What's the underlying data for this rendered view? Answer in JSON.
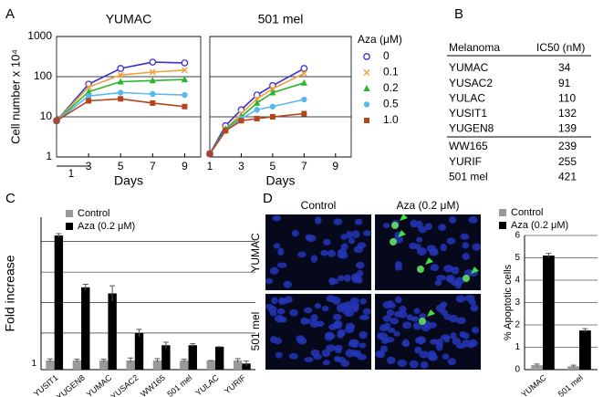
{
  "chart_data": [
    {
      "type": "line",
      "title": "YUMAC",
      "xlabel": "Days",
      "ylabel": "Cell number x 10⁴",
      "log_y": true,
      "grid": true,
      "x": [
        1,
        3,
        5,
        7,
        9
      ],
      "xlim": [
        1,
        10
      ],
      "xticks": [
        3,
        5,
        7,
        9
      ],
      "ylim": [
        1,
        1000
      ],
      "yticks": [
        1,
        10,
        100,
        1000
      ],
      "annotation": "1",
      "legend_title": "Aza (μM)",
      "series": [
        {
          "name": "0",
          "color": "#3a2fd0",
          "marker": "open-circle",
          "values": [
            8,
            65,
            160,
            230,
            220
          ]
        },
        {
          "name": "0.1",
          "color": "#f0a040",
          "marker": "cross",
          "values": [
            8,
            55,
            110,
            130,
            145
          ]
        },
        {
          "name": "0.2",
          "color": "#2db52d",
          "marker": "triangle",
          "values": [
            8,
            42,
            75,
            80,
            85
          ]
        },
        {
          "name": "0.5",
          "color": "#5ab8ee",
          "marker": "dot",
          "values": [
            8,
            33,
            40,
            37,
            35
          ]
        },
        {
          "name": "1.0",
          "color": "#b5431b",
          "marker": "square",
          "values": [
            8,
            25,
            28,
            22,
            18
          ]
        }
      ]
    },
    {
      "type": "line",
      "title": "501 mel",
      "xlabel": "Days",
      "log_y": true,
      "grid": true,
      "x": [
        1,
        2,
        3,
        4,
        5,
        7
      ],
      "xlim": [
        1,
        10
      ],
      "xticks": [
        1,
        3,
        5,
        7,
        9
      ],
      "ylim": [
        1,
        1000
      ],
      "yticks": [
        1,
        10,
        100,
        1000
      ],
      "series": [
        {
          "color": "#3a2fd0",
          "marker": "open-circle",
          "values": [
            1.2,
            6,
            15,
            35,
            60,
            160
          ]
        },
        {
          "color": "#f0a040",
          "marker": "cross",
          "values": [
            1.2,
            5,
            12,
            28,
            50,
            120
          ]
        },
        {
          "color": "#2db52d",
          "marker": "triangle",
          "values": [
            1.2,
            5,
            10,
            22,
            40,
            70
          ]
        },
        {
          "color": "#5ab8ee",
          "marker": "dot",
          "values": [
            1.2,
            4.5,
            9,
            15,
            18,
            27
          ]
        },
        {
          "color": "#b5431b",
          "marker": "square",
          "values": [
            1.2,
            4.5,
            8,
            9,
            10,
            12
          ]
        }
      ]
    },
    {
      "type": "bar",
      "ylabel": "Fold increase",
      "categories": [
        "YUSIT1",
        "YUGEN8",
        "YUMAC",
        "YUSAC2",
        "WW165",
        "501 mel",
        "YULAC",
        "YURIF"
      ],
      "ylim": [
        0.8,
        5.8
      ],
      "yticks": [
        1
      ],
      "gridlines": [
        2,
        3,
        4,
        5
      ],
      "series": [
        {
          "name": "Control",
          "color": "#999999",
          "values": [
            1.1,
            1.1,
            1.1,
            1.1,
            1.1,
            1.1,
            1.1,
            1.1
          ],
          "errors": [
            0.05,
            0.04,
            0.04,
            0.08,
            0.06,
            0.04,
            0,
            0.06
          ]
        },
        {
          "name": "Aza (0.2 μM)",
          "color": "#000000",
          "values": [
            5.2,
            3.5,
            3.3,
            2.0,
            1.6,
            1.6,
            1.55,
            1.0
          ],
          "errors": [
            0.06,
            0.1,
            0.25,
            0.12,
            0.1,
            0.05,
            0,
            0.08
          ]
        }
      ]
    },
    {
      "type": "bar",
      "ylabel": "% Apoptotic cells",
      "categories": [
        "YUMAC",
        "501 mel"
      ],
      "ylim": [
        0,
        6
      ],
      "yticks": [
        0,
        1,
        2,
        3,
        4,
        5,
        6
      ],
      "grid": true,
      "series": [
        {
          "name": "Control",
          "color": "#999999",
          "values": [
            0.2,
            0.15
          ],
          "errors": [
            0.05,
            0.05
          ]
        },
        {
          "name": "Aza (0.2 μM)",
          "color": "#000000",
          "values": [
            5.1,
            1.75
          ],
          "errors": [
            0.1,
            0.08
          ]
        }
      ]
    }
  ],
  "panel_labels": [
    "A",
    "B",
    "C",
    "D"
  ],
  "table": {
    "header": [
      "Melanoma",
      "IC50 (nM)"
    ],
    "rows": [
      [
        "YUMAC",
        34
      ],
      [
        "YUSAC2",
        91
      ],
      [
        "YULAC",
        110
      ],
      [
        "YUSIT1",
        132
      ],
      [
        "YUGEN8",
        139
      ],
      [
        "WW165",
        239
      ],
      [
        "YURIF",
        255
      ],
      [
        "501 mel",
        421
      ]
    ]
  },
  "micrograph": {
    "columns": [
      "Control",
      "Aza (0.2 μM)"
    ],
    "rows": [
      "YUMAC",
      "501 mel"
    ]
  }
}
